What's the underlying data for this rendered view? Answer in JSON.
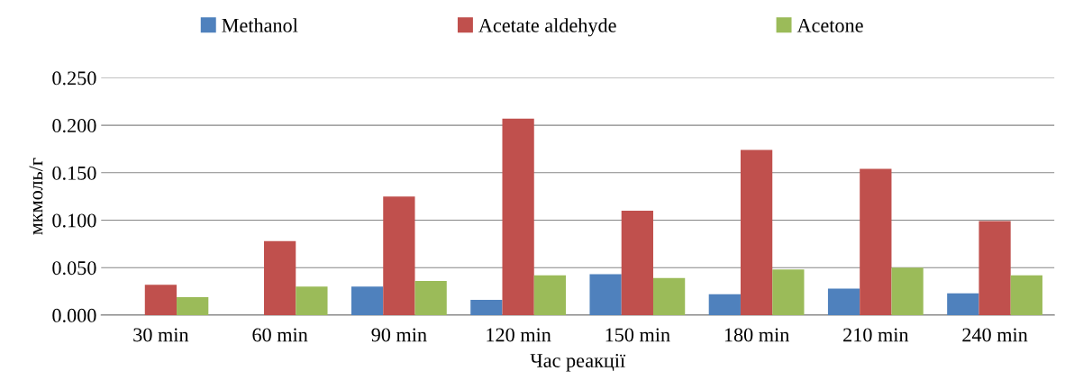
{
  "chart_data": {
    "type": "bar",
    "xlabel": "Час реакції",
    "ylabel": "мкмоль/г",
    "categories": [
      "30 min",
      "60 min",
      "90 min",
      "120 min",
      "150 min",
      "180 min",
      "210 min",
      "240 min"
    ],
    "series": [
      {
        "name": "Methanol",
        "color": "#4f81bd",
        "values": [
          0,
          0,
          0.03,
          0.016,
          0.043,
          0.022,
          0.028,
          0.023
        ]
      },
      {
        "name": "Acetate aldehyde",
        "color": "#c0504d",
        "values": [
          0.032,
          0.078,
          0.125,
          0.207,
          0.11,
          0.174,
          0.154,
          0.099
        ]
      },
      {
        "name": "Acetone",
        "color": "#9bbb59",
        "values": [
          0.019,
          0.03,
          0.036,
          0.042,
          0.039,
          0.048,
          0.05,
          0.042
        ]
      }
    ],
    "ylim": [
      0,
      0.25
    ],
    "yticks": [
      {
        "value": 0,
        "label": "0.000"
      },
      {
        "value": 0.05,
        "label": "0.050"
      },
      {
        "value": 0.1,
        "label": "0.100"
      },
      {
        "value": 0.15,
        "label": "0.150"
      },
      {
        "value": 0.2,
        "label": "0.200"
      },
      {
        "value": 0.25,
        "label": "0.250"
      }
    ],
    "grid": "y",
    "legend": "top"
  }
}
